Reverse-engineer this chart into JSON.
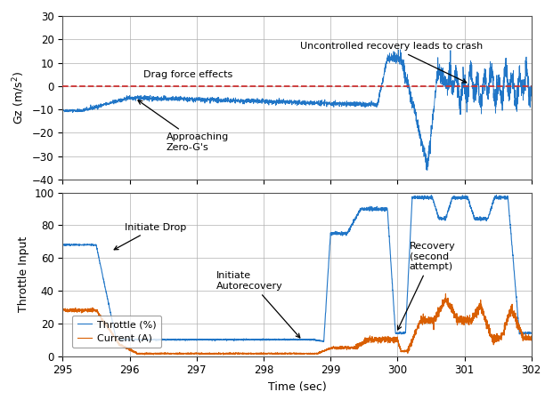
{
  "title": "",
  "xlim": [
    295,
    302
  ],
  "gz_ylim": [
    -40,
    30
  ],
  "gz_yticks": [
    -40,
    -30,
    -20,
    -10,
    0,
    10,
    20,
    30
  ],
  "gz_ylabel": "Gz (m/s^2)",
  "throttle_ylim": [
    0,
    100
  ],
  "throttle_yticks": [
    0,
    20,
    40,
    60,
    80,
    100
  ],
  "throttle_ylabel": "Throttle Input",
  "xlabel": "Time (sec)",
  "xticks": [
    295,
    296,
    297,
    298,
    299,
    300,
    301,
    302
  ],
  "line_color_blue": "#2176c7",
  "line_color_red": "#cc3333",
  "line_color_orange": "#d95f02",
  "background_color": "#ffffff",
  "grid_color": "#b0b0b0",
  "legend_throttle": [
    "Throttle (%)",
    "Current (A)"
  ]
}
